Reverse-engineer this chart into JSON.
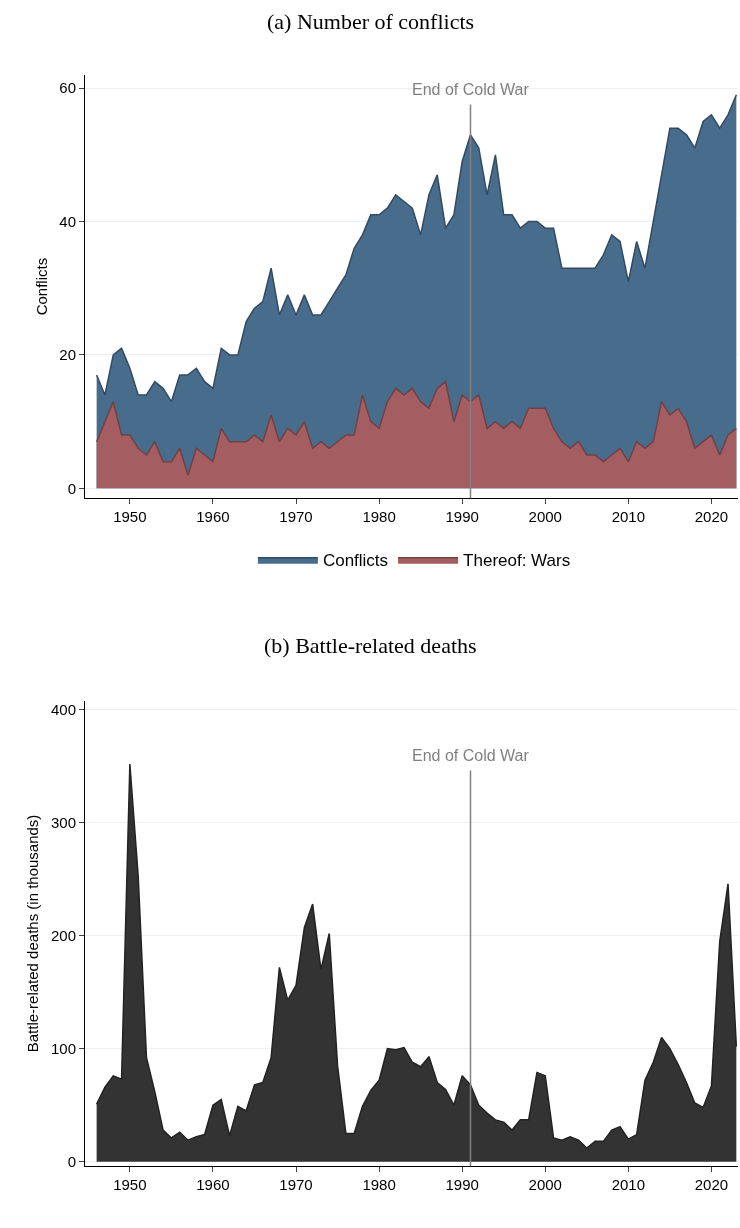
{
  "chart_data": [
    {
      "type": "area",
      "title": "(a) Number of conflicts",
      "ylabel": "Conflicts",
      "x": [
        1946,
        1947,
        1948,
        1949,
        1950,
        1951,
        1952,
        1953,
        1954,
        1955,
        1956,
        1957,
        1958,
        1959,
        1960,
        1961,
        1962,
        1963,
        1964,
        1965,
        1966,
        1967,
        1968,
        1969,
        1970,
        1971,
        1972,
        1973,
        1974,
        1975,
        1976,
        1977,
        1978,
        1979,
        1980,
        1981,
        1982,
        1983,
        1984,
        1985,
        1986,
        1987,
        1988,
        1989,
        1990,
        1991,
        1992,
        1993,
        1994,
        1995,
        1996,
        1997,
        1998,
        1999,
        2000,
        2001,
        2002,
        2003,
        2004,
        2005,
        2006,
        2007,
        2008,
        2009,
        2010,
        2011,
        2012,
        2013,
        2014,
        2015,
        2016,
        2017,
        2018,
        2019,
        2020,
        2021,
        2022,
        2023
      ],
      "series": [
        {
          "name": "Conflicts",
          "color": "#486c8c",
          "values": [
            17,
            14,
            20,
            21,
            18,
            14,
            14,
            16,
            15,
            13,
            17,
            17,
            18,
            16,
            15,
            21,
            20,
            20,
            25,
            27,
            28,
            33,
            26,
            29,
            26,
            29,
            26,
            26,
            28,
            30,
            32,
            36,
            38,
            41,
            41,
            42,
            44,
            43,
            42,
            38,
            44,
            47,
            39,
            41,
            49,
            53,
            51,
            44,
            50,
            41,
            41,
            39,
            40,
            40,
            39,
            39,
            33,
            33,
            33,
            33,
            33,
            35,
            38,
            37,
            31,
            37,
            33,
            40,
            47,
            54,
            54,
            53,
            51,
            55,
            56,
            54,
            56,
            59
          ]
        },
        {
          "name": "Thereof: Wars",
          "color": "#a45d60",
          "values": [
            7,
            10,
            13,
            8,
            8,
            6,
            5,
            7,
            4,
            4,
            6,
            2,
            6,
            5,
            4,
            9,
            7,
            7,
            7,
            8,
            7,
            11,
            7,
            9,
            8,
            10,
            6,
            7,
            6,
            7,
            8,
            8,
            14,
            10,
            9,
            13,
            15,
            14,
            15,
            13,
            12,
            15,
            16,
            10,
            14,
            13,
            14,
            9,
            10,
            9,
            10,
            9,
            12,
            12,
            12,
            9,
            7,
            6,
            7,
            5,
            5,
            4,
            5,
            6,
            4,
            7,
            6,
            7,
            13,
            11,
            12,
            10,
            6,
            7,
            8,
            5,
            8,
            9
          ]
        }
      ],
      "xlim": [
        1944.6,
        2023.2
      ],
      "xticks": [
        1950,
        1960,
        1970,
        1980,
        1990,
        2000,
        2010,
        2020
      ],
      "ylim": [
        -1.5,
        62
      ],
      "yticks": [
        0,
        20,
        40,
        60
      ],
      "grid": "y",
      "legend": "bottom",
      "ref_lines": [
        {
          "axis": "x",
          "value": 1991,
          "label": "End of Cold War",
          "color": "#808080"
        }
      ]
    },
    {
      "type": "area",
      "title": "(b) Battle-related deaths",
      "ylabel": "Battle-related deaths (in thousands)",
      "x": [
        1946,
        1947,
        1948,
        1949,
        1950,
        1951,
        1952,
        1953,
        1954,
        1955,
        1956,
        1957,
        1958,
        1959,
        1960,
        1961,
        1962,
        1963,
        1964,
        1965,
        1966,
        1967,
        1968,
        1969,
        1970,
        1971,
        1972,
        1973,
        1974,
        1975,
        1976,
        1977,
        1978,
        1979,
        1980,
        1981,
        1982,
        1983,
        1984,
        1985,
        1986,
        1987,
        1988,
        1989,
        1990,
        1991,
        1992,
        1993,
        1994,
        1995,
        1996,
        1997,
        1998,
        1999,
        2000,
        2001,
        2002,
        2003,
        2004,
        2005,
        2006,
        2007,
        2008,
        2009,
        2010,
        2011,
        2012,
        2013,
        2014,
        2015,
        2016,
        2017,
        2018,
        2019,
        2020,
        2021,
        2022,
        2023
      ],
      "series": [
        {
          "color": "#333333",
          "values": [
            51,
            66,
            76,
            73,
            352,
            253,
            92,
            62,
            28,
            21,
            26,
            19,
            22,
            24,
            50,
            55,
            23,
            49,
            45,
            68,
            70,
            92,
            172,
            143,
            156,
            207,
            228,
            170,
            202,
            85,
            25,
            25,
            49,
            63,
            72,
            100,
            99,
            101,
            88,
            84,
            93,
            70,
            64,
            50,
            76,
            68,
            50,
            43,
            37,
            35,
            28,
            37,
            37,
            79,
            76,
            21,
            19,
            22,
            19,
            12,
            18,
            18,
            28,
            31,
            20,
            24,
            72,
            88,
            110,
            100,
            86,
            70,
            52,
            48,
            67,
            195,
            246,
            102
          ]
        }
      ],
      "xlim": [
        1944.6,
        2023.2
      ],
      "xticks": [
        1950,
        1960,
        1970,
        1980,
        1990,
        2000,
        2010,
        2020
      ],
      "ylim": [
        -4,
        408
      ],
      "yticks": [
        0,
        100,
        200,
        300,
        400
      ],
      "grid": "y",
      "ref_lines": [
        {
          "axis": "x",
          "value": 1991,
          "label": "End of Cold War",
          "color": "#808080"
        }
      ]
    }
  ]
}
